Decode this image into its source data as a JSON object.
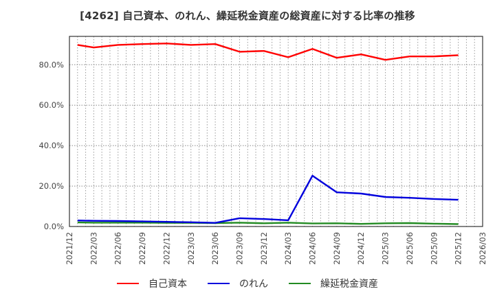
{
  "title": "[4262]  自己資本、のれん、繰延税金資産の総資産に対する比率の推移",
  "chart_data": {
    "type": "line",
    "title": "[4262]  自己資本、のれん、繰延税金資産の総資産に対する比率の推移",
    "xlabel": "",
    "ylabel": "",
    "x_tick_labels": [
      "2021/12",
      "2022/03",
      "2022/06",
      "2022/09",
      "2022/12",
      "2023/03",
      "2023/06",
      "2023/09",
      "2023/12",
      "2024/03",
      "2024/06",
      "2024/09",
      "2024/12",
      "2025/03",
      "2025/06",
      "2025/09",
      "2025/12",
      "2026/03"
    ],
    "y_tick_labels": [
      "0.0%",
      "20.0%",
      "40.0%",
      "60.0%",
      "80.0%"
    ],
    "ylim": [
      0,
      94
    ],
    "grid": true,
    "legend_position": "bottom",
    "x": [
      "2022/01",
      "2022/03",
      "2022/06",
      "2022/09",
      "2022/12",
      "2023/03",
      "2023/06",
      "2023/09",
      "2023/12",
      "2024/03",
      "2024/06",
      "2024/09",
      "2024/12",
      "2025/03",
      "2025/06",
      "2025/09",
      "2025/12"
    ],
    "series": [
      {
        "name": "自己資本",
        "color": "#ff0000",
        "values": [
          89.8,
          88.5,
          89.8,
          90.2,
          90.5,
          89.8,
          90.2,
          86.4,
          86.8,
          83.7,
          87.8,
          83.4,
          85.1,
          82.4,
          84.1,
          84.1,
          84.7
        ]
      },
      {
        "name": "のれん",
        "color": "#0000dd",
        "values": [
          3.0,
          2.8,
          2.7,
          2.5,
          2.3,
          2.1,
          1.8,
          4.1,
          3.7,
          3.1,
          25.1,
          16.9,
          16.3,
          14.6,
          14.2,
          13.6,
          13.2
        ]
      },
      {
        "name": "繰延税金資産",
        "color": "#228b22",
        "values": [
          2.0,
          1.9,
          1.9,
          1.9,
          1.8,
          1.8,
          1.7,
          1.9,
          1.6,
          1.9,
          1.5,
          1.6,
          1.3,
          1.6,
          1.7,
          1.4,
          1.2
        ]
      }
    ]
  },
  "legend": [
    {
      "label": "自己資本",
      "color": "#ff0000"
    },
    {
      "label": "のれん",
      "color": "#0000dd"
    },
    {
      "label": "繰延税金資産",
      "color": "#228b22"
    }
  ]
}
